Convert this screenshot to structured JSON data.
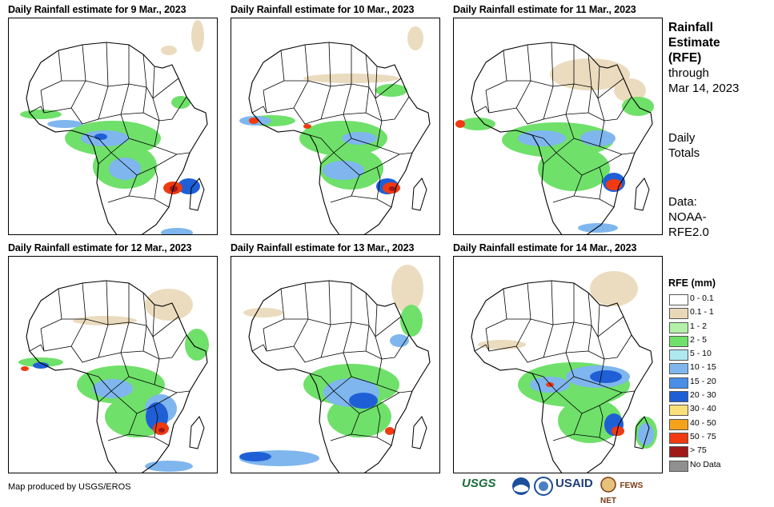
{
  "panels": [
    {
      "title": "Daily Rainfall estimate for 9 Mar., 2023"
    },
    {
      "title": "Daily Rainfall estimate for 10 Mar., 2023"
    },
    {
      "title": "Daily Rainfall estimate for 11 Mar., 2023"
    },
    {
      "title": "Daily Rainfall estimate for 12 Mar., 2023"
    },
    {
      "title": "Daily Rainfall estimate for 13 Mar., 2023"
    },
    {
      "title": "Daily Rainfall estimate for 14 Mar., 2023"
    }
  ],
  "sidebar": {
    "title_line1": "Rainfall",
    "title_line2": "Estimate",
    "title_line3": "(RFE)",
    "through_line1": "through",
    "through_line2": "Mar 14, 2023",
    "totals_line1": "Daily",
    "totals_line2": "Totals",
    "data_line1": "Data:",
    "data_line2": "NOAA-",
    "data_line3": "RFE2.0"
  },
  "legend": {
    "title": "RFE (mm)",
    "items": [
      {
        "label": "0 - 0.1",
        "color": "#ffffff"
      },
      {
        "label": "0.1 - 1",
        "color": "#e9d8b8"
      },
      {
        "label": "1 - 2",
        "color": "#b4f0a8"
      },
      {
        "label": "2 - 5",
        "color": "#6fe06a"
      },
      {
        "label": "5 - 10",
        "color": "#aee8f0"
      },
      {
        "label": "10 - 15",
        "color": "#7fb6ee"
      },
      {
        "label": "15 - 20",
        "color": "#4a8ee8"
      },
      {
        "label": "20 - 30",
        "color": "#1f5fd6"
      },
      {
        "label": "30 - 40",
        "color": "#fbe07a"
      },
      {
        "label": "40 - 50",
        "color": "#f4a21a"
      },
      {
        "label": "50 - 75",
        "color": "#ef3a12"
      },
      {
        "label": "> 75",
        "color": "#a01818"
      },
      {
        "label": "No Data",
        "color": "#909090"
      }
    ]
  },
  "credit": "Map produced by USGS/EROS",
  "logos": {
    "usgs": "USGS",
    "usaid": "USAID",
    "fews": "FEWS NET"
  }
}
